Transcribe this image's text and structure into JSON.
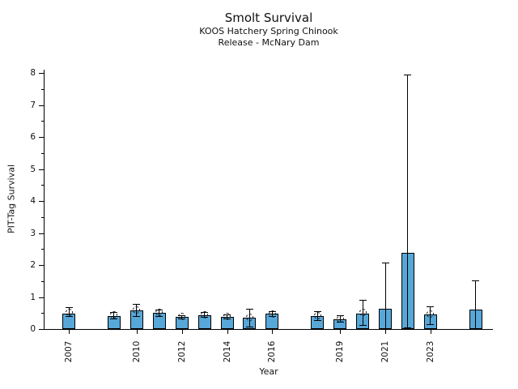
{
  "header": {
    "title": "Smolt Survival",
    "subtitle1": "KOOS Hatchery Spring Chinook",
    "subtitle2": "Release - McNary Dam"
  },
  "chart_data": {
    "type": "bar",
    "title": "Smolt Survival",
    "subtitle": [
      "KOOS Hatchery Spring Chinook",
      "Release - McNary Dam"
    ],
    "xlabel": "Year",
    "ylabel": "PIT-Tag Survival",
    "ylim": [
      0,
      8.1
    ],
    "yticks": [
      0,
      1,
      2,
      3,
      4,
      5,
      6,
      7,
      8
    ],
    "y_minor_ticks": [
      0.5,
      1.5,
      2.5,
      3.5,
      4.5,
      5.5,
      6.5,
      7.5
    ],
    "xtick_years": [
      2007,
      2010,
      2012,
      2014,
      2016,
      2019,
      2021,
      2023
    ],
    "legend": "none",
    "grid": false,
    "bar_color": "#57A7D8",
    "bar_edge_color": "#000000",
    "error_bar_color": "#000000",
    "marker_style": "open-dashed-circle",
    "series": [
      {
        "year": 2007,
        "bar": 0.47,
        "point": 0.53,
        "err_low": 0.4,
        "err_high": 0.68
      },
      {
        "year": 2009,
        "bar": 0.41,
        "point": 0.44,
        "err_low": 0.34,
        "err_high": 0.54
      },
      {
        "year": 2010,
        "bar": 0.59,
        "point": 0.6,
        "err_low": 0.41,
        "err_high": 0.79
      },
      {
        "year": 2011,
        "bar": 0.51,
        "point": 0.52,
        "err_low": 0.41,
        "err_high": 0.62
      },
      {
        "year": 2012,
        "bar": 0.37,
        "point": 0.38,
        "err_low": 0.32,
        "err_high": 0.44
      },
      {
        "year": 2013,
        "bar": 0.44,
        "point": 0.45,
        "err_low": 0.37,
        "err_high": 0.53
      },
      {
        "year": 2014,
        "bar": 0.38,
        "point": 0.39,
        "err_low": 0.33,
        "err_high": 0.45
      },
      {
        "year": 2015,
        "bar": 0.35,
        "point": 0.37,
        "err_low": 0.07,
        "err_high": 0.64
      },
      {
        "year": 2016,
        "bar": 0.47,
        "point": 0.48,
        "err_low": 0.41,
        "err_high": 0.55
      },
      {
        "year": 2018,
        "bar": 0.4,
        "point": 0.41,
        "err_low": 0.27,
        "err_high": 0.55
      },
      {
        "year": 2019,
        "bar": 0.31,
        "point": 0.32,
        "err_low": 0.22,
        "err_high": 0.42
      },
      {
        "year": 2020,
        "bar": 0.49,
        "point": 0.51,
        "err_low": 0.12,
        "err_high": 0.9
      },
      {
        "year": 2021,
        "bar": 0.63,
        "point": null,
        "err_low": 0.03,
        "err_high": 2.08
      },
      {
        "year": 2022,
        "bar": 2.37,
        "point": null,
        "err_low": 0.05,
        "err_high": 7.95
      },
      {
        "year": 2023,
        "bar": 0.46,
        "point": 0.47,
        "err_low": 0.15,
        "err_high": 0.72
      },
      {
        "year": 2025,
        "bar": 0.6,
        "point": null,
        "err_low": 0.02,
        "err_high": 1.52
      }
    ]
  }
}
